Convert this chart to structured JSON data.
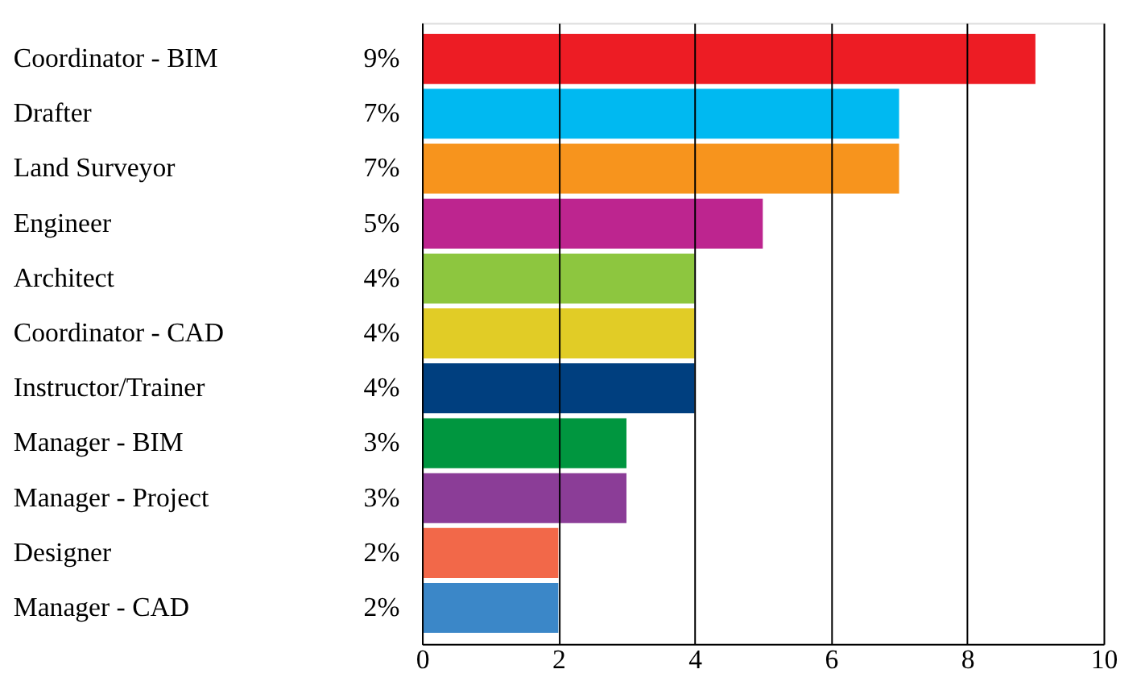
{
  "chart_data": {
    "type": "bar",
    "orientation": "horizontal",
    "categories": [
      "Coordinator - BIM",
      "Drafter",
      "Land Surveyor",
      "Engineer",
      "Architect",
      "Coordinator - CAD",
      "Instructor/Trainer",
      "Manager - BIM",
      "Manager - Project",
      "Designer",
      "Manager - CAD"
    ],
    "values": [
      9,
      7,
      7,
      5,
      4,
      4,
      4,
      3,
      3,
      2,
      2
    ],
    "value_labels": [
      "9%",
      "7%",
      "7%",
      "5%",
      "4%",
      "4%",
      "4%",
      "3%",
      "3%",
      "2%",
      "2%"
    ],
    "colors": [
      "#ed1c24",
      "#00b9f1",
      "#f7941d",
      "#bd258f",
      "#8dc63f",
      "#e1cc26",
      "#003f7f",
      "#00963f",
      "#8b3d97",
      "#f26849",
      "#3b87c8"
    ],
    "xlim": [
      0,
      10
    ],
    "xticks": [
      0,
      2,
      4,
      6,
      8,
      10
    ],
    "grid": "x"
  }
}
